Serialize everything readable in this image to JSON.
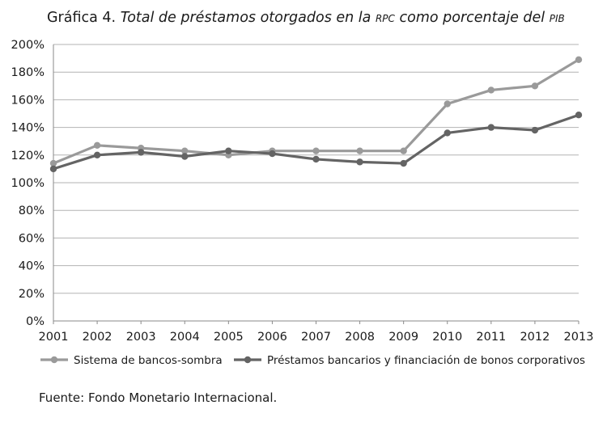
{
  "title": {
    "label": "Gráfica 4.",
    "text_part1": "Total de préstamos otorgados en la",
    "sc1": "RPC",
    "text_part2": "como porcentaje del",
    "sc2": "PIB"
  },
  "source": "Fuente: Fondo Monetario Internacional.",
  "chart_data": {
    "type": "line",
    "x": [
      "2001",
      "2002",
      "2003",
      "2004",
      "2005",
      "2006",
      "2007",
      "2008",
      "2009",
      "2010",
      "2011",
      "2012",
      "2013"
    ],
    "y_ticks": [
      "0%",
      "20%",
      "40%",
      "60%",
      "80%",
      "100%",
      "120%",
      "140%",
      "160%",
      "180%",
      "200%"
    ],
    "ylim": [
      0,
      200
    ],
    "grid": true,
    "legend_position": "bottom",
    "series": [
      {
        "name": "Sistema de bancos-sombra",
        "color": "#9a9a9a",
        "values": [
          114,
          127,
          125,
          123,
          120,
          123,
          123,
          123,
          123,
          157,
          167,
          170,
          189
        ]
      },
      {
        "name": "Préstamos bancarios y financiación de bonos corporativos",
        "color": "#646464",
        "values": [
          110,
          120,
          122,
          119,
          123,
          121,
          117,
          115,
          114,
          136,
          140,
          138,
          149
        ]
      }
    ]
  }
}
